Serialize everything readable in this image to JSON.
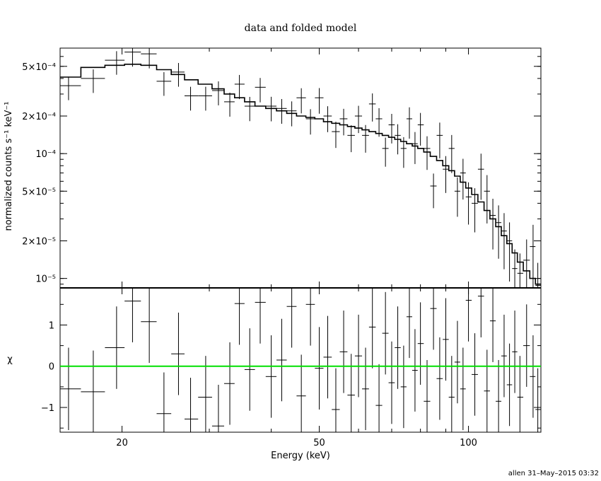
{
  "chart_data": [
    {
      "type": "scatter",
      "title": "data and folded model",
      "ylabel": "normalized counts s⁻¹ keV⁻¹",
      "xscale": "log",
      "yscale": "log",
      "xlim": [
        15,
        140
      ],
      "ylim": [
        8.4e-06,
        0.0007
      ],
      "y_ticks": [
        {
          "value": 0.0005,
          "label": "5×10⁻⁴"
        },
        {
          "value": 0.0002,
          "label": "2×10⁻⁴"
        },
        {
          "value": 0.0001,
          "label": "10⁻⁴"
        },
        {
          "value": 5e-05,
          "label": "5×10⁻⁵"
        },
        {
          "value": 2e-05,
          "label": "2×10⁻⁵"
        },
        {
          "value": 1e-05,
          "label": "10⁻⁵"
        }
      ],
      "series": [
        {
          "kind": "data-with-errors",
          "points": [
            [
              15.6,
              0.00035
            ],
            [
              17.5,
              0.0004
            ],
            [
              19.5,
              0.00056
            ],
            [
              21.0,
              0.00065
            ],
            [
              22.7,
              0.00063
            ],
            [
              24.3,
              0.00038
            ],
            [
              26.0,
              0.00045
            ],
            [
              27.5,
              0.00029
            ],
            [
              29.5,
              0.00029
            ],
            [
              31.3,
              0.00032
            ],
            [
              33.0,
              0.00026
            ],
            [
              34.5,
              0.00036
            ],
            [
              36.2,
              0.00024
            ],
            [
              38.0,
              0.00034
            ],
            [
              40.0,
              0.00024
            ],
            [
              42.0,
              0.00023
            ],
            [
              44.0,
              0.00022
            ],
            [
              46.0,
              0.00028
            ],
            [
              48.0,
              0.00019
            ],
            [
              50.0,
              0.00028
            ],
            [
              52.0,
              0.0002
            ],
            [
              54.0,
              0.00015
            ],
            [
              56.0,
              0.00019
            ],
            [
              58.0,
              0.00014
            ],
            [
              60.0,
              0.0002
            ],
            [
              62.0,
              0.00014
            ],
            [
              64.0,
              0.00025
            ],
            [
              66.0,
              0.00019
            ],
            [
              68.0,
              0.00011
            ],
            [
              70.0,
              0.00017
            ],
            [
              72.0,
              0.00014
            ],
            [
              74.0,
              0.00011
            ],
            [
              76.0,
              0.00019
            ],
            [
              78.0,
              0.00012
            ],
            [
              80.0,
              0.00017
            ],
            [
              82.5,
              0.00011
            ],
            [
              85.0,
              5.5e-05
            ],
            [
              87.5,
              0.00014
            ],
            [
              90.0,
              7.5e-05
            ],
            [
              92.5,
              0.00011
            ],
            [
              95.0,
              5e-05
            ],
            [
              97.5,
              7e-05
            ],
            [
              100.0,
              4.5e-05
            ],
            [
              103.0,
              4e-05
            ],
            [
              106.0,
              7.5e-05
            ],
            [
              109.0,
              5e-05
            ],
            [
              112.0,
              3.2e-05
            ],
            [
              115.0,
              2.8e-05
            ],
            [
              118.0,
              2.4e-05
            ],
            [
              121.0,
              2e-05
            ],
            [
              124.0,
              1.2e-05
            ],
            [
              127.0,
              1.1e-05
            ],
            [
              131.0,
              1.4e-05
            ],
            [
              135.0,
              1.8e-05
            ],
            [
              138.0,
              8.8e-06
            ]
          ]
        },
        {
          "kind": "model-step",
          "points": [
            [
              15.6,
              0.00041
            ],
            [
              17.5,
              0.00049
            ],
            [
              19.5,
              0.00051
            ],
            [
              21.0,
              0.00052
            ],
            [
              22.7,
              0.00051
            ],
            [
              24.3,
              0.00047
            ],
            [
              26.0,
              0.00043
            ],
            [
              27.5,
              0.00039
            ],
            [
              29.5,
              0.00036
            ],
            [
              31.3,
              0.00033
            ],
            [
              33.0,
              0.0003
            ],
            [
              34.5,
              0.00028
            ],
            [
              36.2,
              0.00026
            ],
            [
              38.0,
              0.00024
            ],
            [
              40.0,
              0.00023
            ],
            [
              42.0,
              0.00022
            ],
            [
              44.0,
              0.00021
            ],
            [
              46.0,
              0.0002
            ],
            [
              48.0,
              0.000195
            ],
            [
              50.0,
              0.00019
            ],
            [
              52.0,
              0.00018
            ],
            [
              54.0,
              0.000175
            ],
            [
              56.0,
              0.00017
            ],
            [
              58.0,
              0.000165
            ],
            [
              60.0,
              0.00016
            ],
            [
              62.0,
              0.000155
            ],
            [
              64.0,
              0.00015
            ],
            [
              66.0,
              0.000145
            ],
            [
              68.0,
              0.00014
            ],
            [
              70.0,
              0.000135
            ],
            [
              72.0,
              0.00013
            ],
            [
              74.0,
              0.000125
            ],
            [
              76.0,
              0.00012
            ],
            [
              78.0,
              0.000115
            ],
            [
              80.0,
              0.00011
            ],
            [
              82.5,
              0.000103
            ],
            [
              85.0,
              9.5e-05
            ],
            [
              87.5,
              8.8e-05
            ],
            [
              90.0,
              8e-05
            ],
            [
              92.5,
              7.3e-05
            ],
            [
              95.0,
              6.6e-05
            ],
            [
              97.5,
              5.9e-05
            ],
            [
              100.0,
              5.3e-05
            ],
            [
              103.0,
              4.7e-05
            ],
            [
              106.0,
              4.1e-05
            ],
            [
              109.0,
              3.5e-05
            ],
            [
              112.0,
              3e-05
            ],
            [
              115.0,
              2.6e-05
            ],
            [
              118.0,
              2.2e-05
            ],
            [
              121.0,
              1.9e-05
            ],
            [
              124.0,
              1.6e-05
            ],
            [
              127.0,
              1.35e-05
            ],
            [
              131.0,
              1.15e-05
            ],
            [
              135.0,
              1e-05
            ],
            [
              138.0,
              9e-06
            ]
          ]
        }
      ]
    },
    {
      "type": "scatter",
      "xlabel": "Energy (keV)",
      "ylabel": "χ",
      "xscale": "log",
      "xlim": [
        15,
        140
      ],
      "ylim": [
        -1.6,
        1.9
      ],
      "x_ticks": [
        {
          "value": 20,
          "label": "20"
        },
        {
          "value": 50,
          "label": "50"
        },
        {
          "value": 100,
          "label": "100"
        }
      ],
      "y_ticks": [
        {
          "value": 1,
          "label": "1"
        },
        {
          "value": 0,
          "label": "0"
        },
        {
          "value": -1,
          "label": "−1"
        }
      ],
      "reference_line": {
        "value": 0,
        "color": "#00e000"
      },
      "residuals": [
        -0.55,
        -0.62,
        0.45,
        1.58,
        1.08,
        -1.15,
        0.3,
        -1.28,
        -0.75,
        -1.45,
        -0.42,
        1.52,
        -0.08,
        1.55,
        -0.25,
        0.15,
        1.45,
        -0.72,
        1.5,
        -0.05,
        0.22,
        -1.05,
        0.35,
        -0.7,
        0.25,
        -0.55,
        0.95,
        -0.95,
        0.8,
        -0.4,
        0.45,
        -0.5,
        1.2,
        -0.1,
        0.55,
        -0.85,
        1.4,
        -0.3,
        0.65,
        -0.75,
        0.1,
        -0.55,
        1.6,
        -0.2,
        1.7,
        -0.6,
        1.1,
        -0.85,
        0.25,
        -0.45,
        0.35,
        -0.75,
        0.5,
        -0.25,
        -1.05
      ]
    }
  ],
  "footer": "allen 31–May–2015 03:32"
}
